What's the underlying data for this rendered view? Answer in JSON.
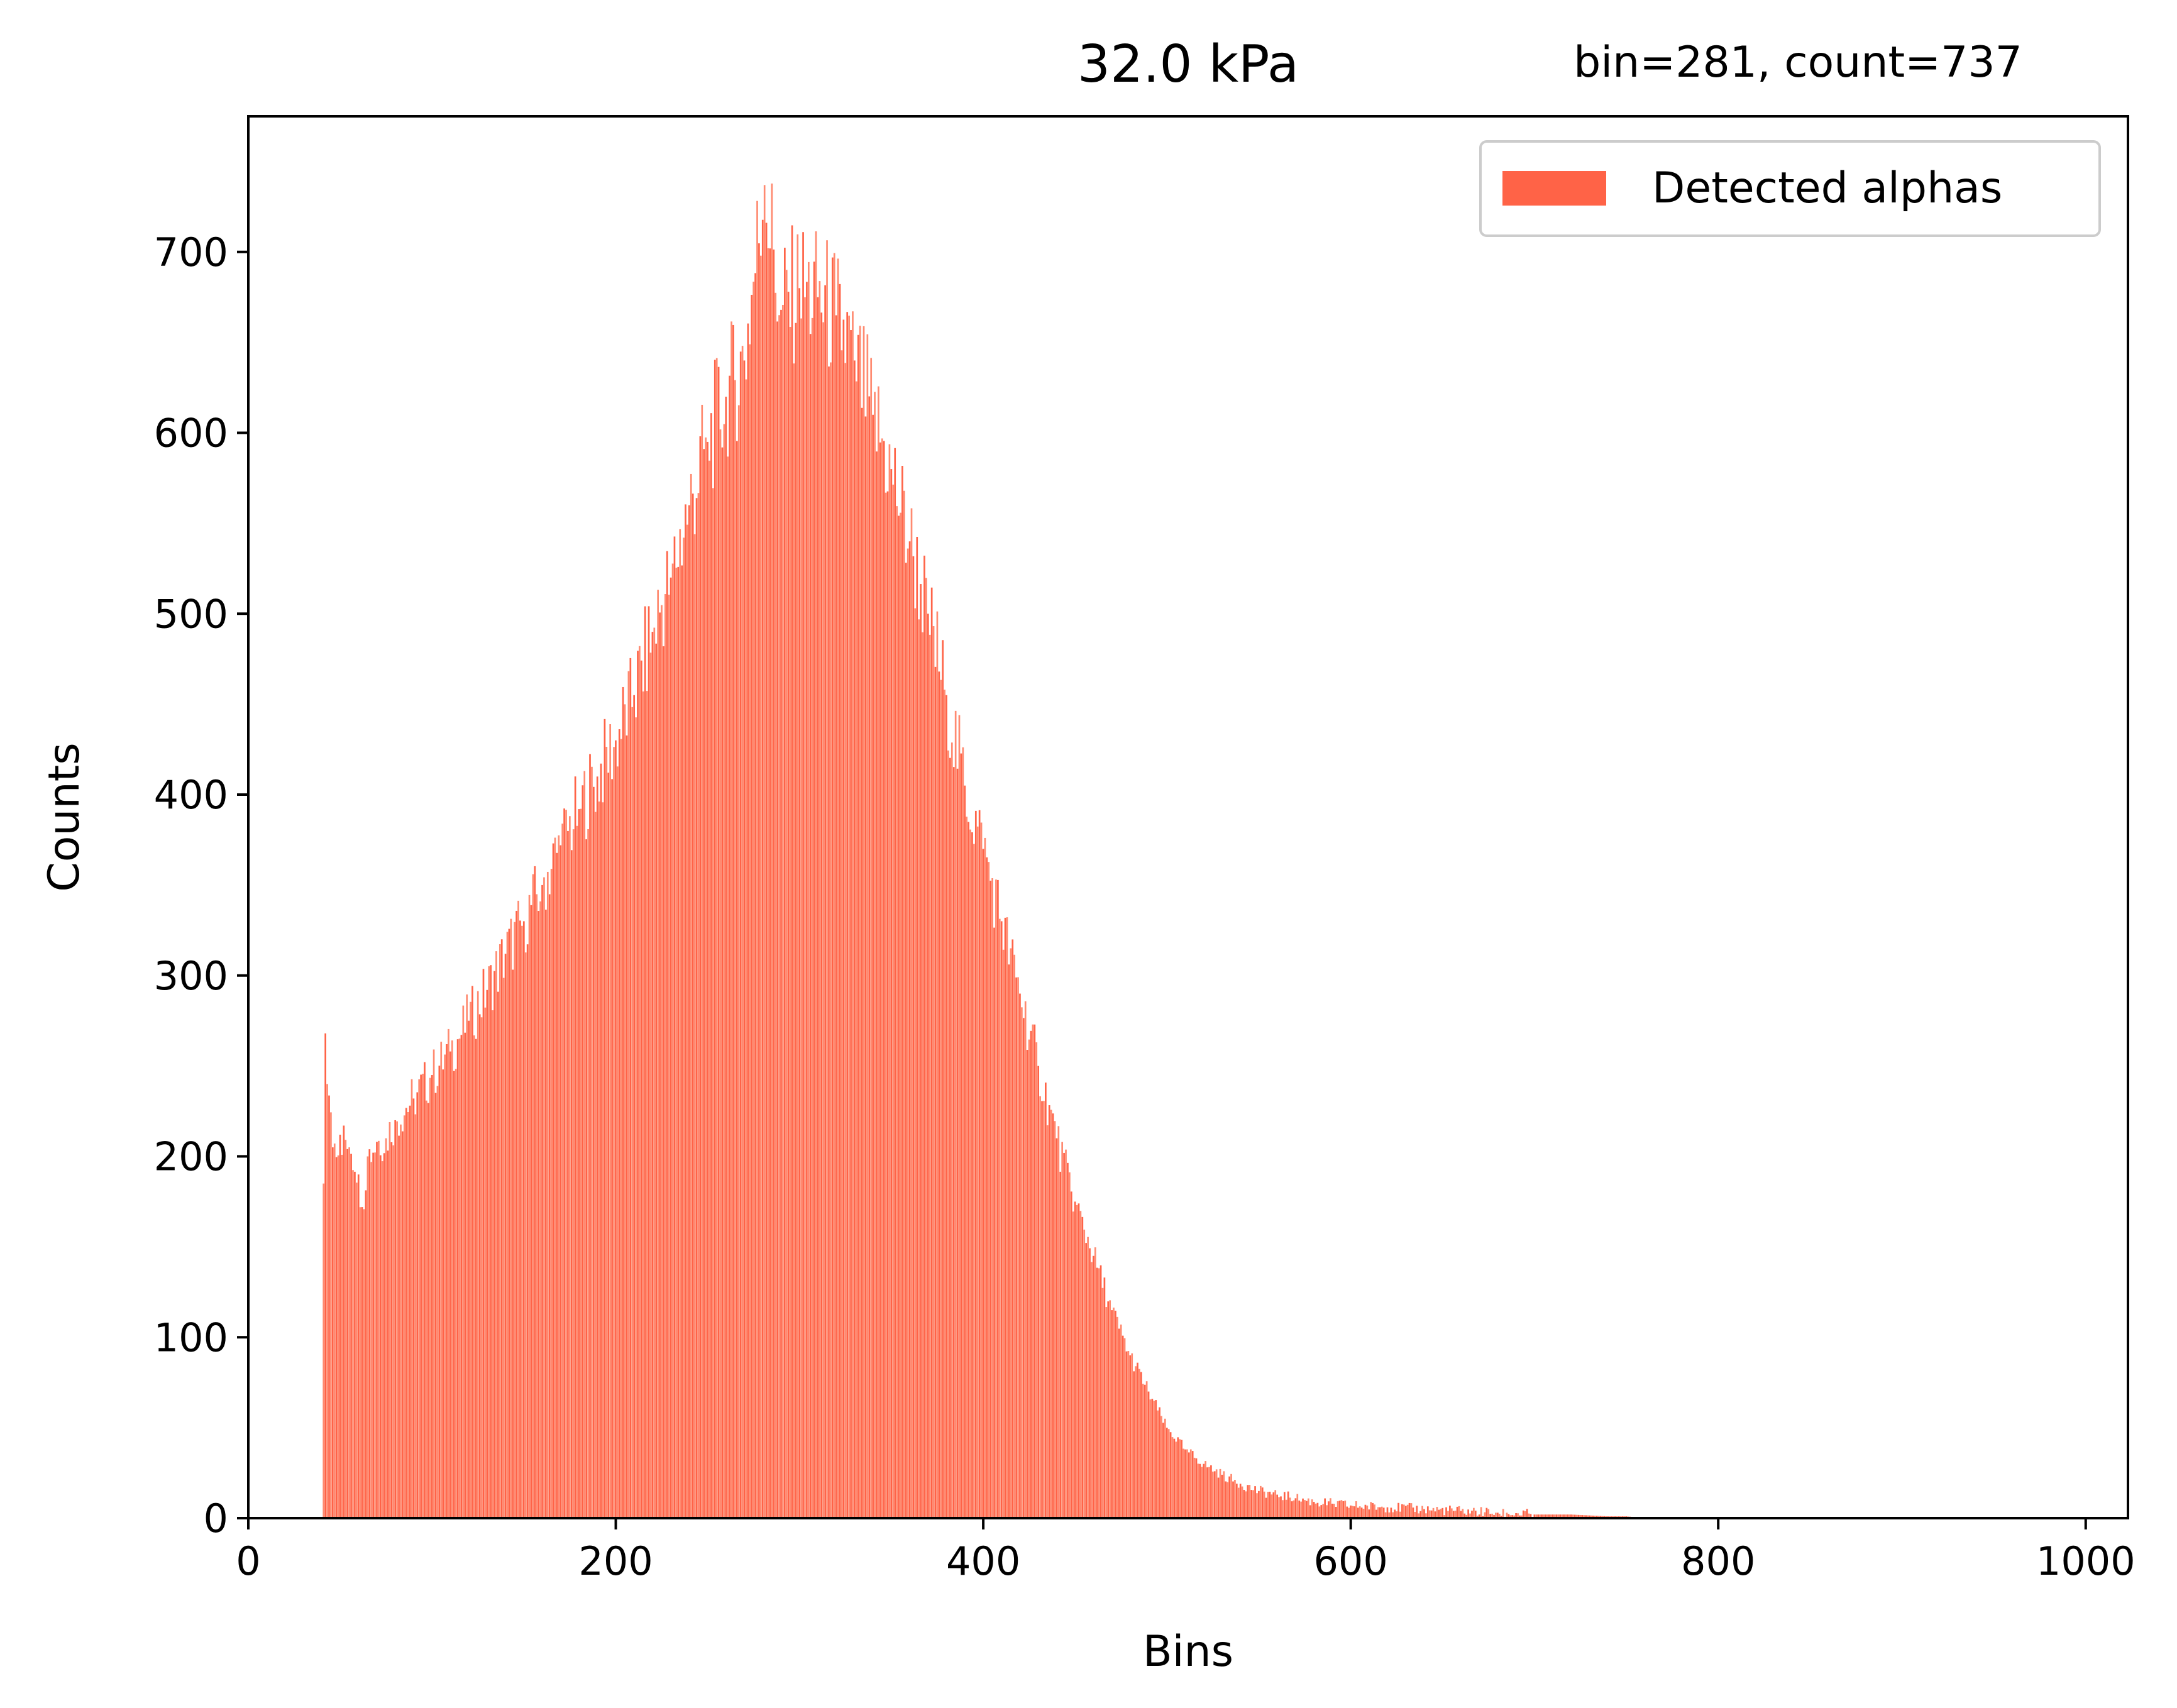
{
  "chart_data": {
    "type": "bar",
    "title": "32.0 kPa",
    "annotation": "bin=281, count=737",
    "xlabel": "Bins",
    "ylabel": "Counts",
    "xlim": [
      0,
      1023
    ],
    "ylim": [
      0,
      775
    ],
    "xticks": [
      0,
      200,
      400,
      600,
      800,
      1000
    ],
    "yticks": [
      0,
      100,
      200,
      300,
      400,
      500,
      600,
      700
    ],
    "grid": false,
    "legend_position": "top-right",
    "series": [
      {
        "name": "Detected alphas",
        "color": "#ff6347",
        "points": [
          [
            41,
            185
          ],
          [
            42,
            268
          ],
          [
            43,
            240
          ],
          [
            46,
            205
          ],
          [
            50,
            212
          ],
          [
            55,
            205
          ],
          [
            60,
            190
          ],
          [
            62,
            172
          ],
          [
            65,
            200
          ],
          [
            70,
            208
          ],
          [
            75,
            210
          ],
          [
            80,
            220
          ],
          [
            90,
            232
          ],
          [
            100,
            245
          ],
          [
            110,
            258
          ],
          [
            120,
            275
          ],
          [
            130,
            292
          ],
          [
            140,
            312
          ],
          [
            150,
            330
          ],
          [
            160,
            350
          ],
          [
            170,
            372
          ],
          [
            180,
            392
          ],
          [
            190,
            410
          ],
          [
            200,
            430
          ],
          [
            210,
            455
          ],
          [
            220,
            490
          ],
          [
            230,
            520
          ],
          [
            240,
            560
          ],
          [
            250,
            595
          ],
          [
            260,
            620
          ],
          [
            270,
            640
          ],
          [
            281,
            737
          ],
          [
            290,
            668
          ],
          [
            300,
            680
          ],
          [
            310,
            675
          ],
          [
            320,
            665
          ],
          [
            330,
            640
          ],
          [
            340,
            610
          ],
          [
            350,
            580
          ],
          [
            360,
            540
          ],
          [
            370,
            500
          ],
          [
            380,
            455
          ],
          [
            390,
            405
          ],
          [
            400,
            370
          ],
          [
            410,
            330
          ],
          [
            420,
            290
          ],
          [
            430,
            250
          ],
          [
            440,
            210
          ],
          [
            450,
            175
          ],
          [
            460,
            145
          ],
          [
            470,
            115
          ],
          [
            480,
            90
          ],
          [
            490,
            70
          ],
          [
            500,
            50
          ],
          [
            510,
            38
          ],
          [
            520,
            30
          ],
          [
            530,
            24
          ],
          [
            540,
            19
          ],
          [
            550,
            15
          ],
          [
            560,
            13
          ],
          [
            570,
            11
          ],
          [
            580,
            9
          ],
          [
            590,
            8
          ],
          [
            600,
            7
          ],
          [
            620,
            6
          ],
          [
            640,
            5
          ],
          [
            660,
            4
          ],
          [
            680,
            3
          ],
          [
            700,
            2
          ],
          [
            720,
            2
          ],
          [
            740,
            1
          ],
          [
            750,
            1
          ],
          [
            760,
            0
          ]
        ]
      }
    ]
  }
}
